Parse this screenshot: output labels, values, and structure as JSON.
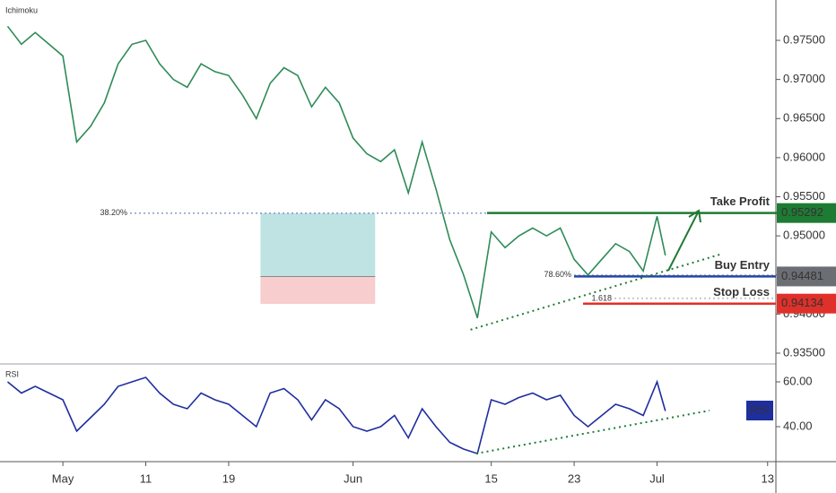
{
  "chart_data": [
    {
      "type": "line",
      "title": "Ichimoku",
      "x": [
        -4,
        -3,
        -2,
        -1,
        0,
        1,
        2,
        3,
        4,
        5,
        6,
        7,
        8,
        9,
        10,
        11,
        12,
        13,
        14,
        15,
        16,
        17,
        18,
        19,
        20,
        21,
        22,
        23,
        24,
        25,
        26,
        27,
        28,
        29,
        30,
        31,
        32,
        33,
        34,
        35,
        36,
        37,
        38,
        39,
        40,
        41,
        42,
        43,
        43.6
      ],
      "series": [
        {
          "color": "#2e8b57",
          "values": [
            0.9768,
            0.9745,
            0.976,
            0.9745,
            0.973,
            0.962,
            0.964,
            0.967,
            0.972,
            0.9745,
            0.975,
            0.972,
            0.97,
            0.969,
            0.972,
            0.971,
            0.9705,
            0.968,
            0.965,
            0.9695,
            0.9715,
            0.9705,
            0.9665,
            0.969,
            0.967,
            0.9625,
            0.9605,
            0.9595,
            0.961,
            0.9555,
            0.962,
            0.956,
            0.9495,
            0.945,
            0.9395,
            0.9505,
            0.9485,
            0.95,
            0.951,
            0.95,
            0.951,
            0.947,
            0.945,
            0.947,
            0.949,
            0.948,
            0.9455,
            0.9525,
            0.9475
          ]
        }
      ],
      "xlim": [
        -4.55,
        51.6
      ],
      "ylim": [
        0.93374,
        0.98016
      ],
      "yticks": [
        {
          "value": 0.935,
          "label": "0.93500"
        },
        {
          "value": 0.94,
          "label": "0.94000"
        },
        {
          "value": 0.945,
          "label": "0.94500"
        },
        {
          "value": 0.95,
          "label": "0.95000"
        },
        {
          "value": 0.955,
          "label": "0.95500"
        },
        {
          "value": 0.96,
          "label": "0.96000"
        },
        {
          "value": 0.965,
          "label": "0.96500"
        },
        {
          "value": 0.97,
          "label": "0.97000"
        },
        {
          "value": 0.975,
          "label": "0.97500"
        }
      ],
      "levels": [
        {
          "label": "Take Profit",
          "value": 0.95292,
          "color": "#1e7b34"
        },
        {
          "label": "Buy Entry",
          "value": 0.94481,
          "color": "#2046a8"
        },
        {
          "label": "Stop Loss",
          "value": 0.94134,
          "color": "#e0302a"
        }
      ],
      "fib_levels": [
        {
          "label": "38.20%",
          "value": 0.9529
        },
        {
          "label": "78.60%",
          "value": 0.945
        },
        {
          "label": "1.618",
          "value": 0.942
        }
      ],
      "position_box": {
        "x": [
          14.3,
          22.6
        ],
        "target": 0.9529,
        "entry": 0.9448,
        "stop": 0.9413
      },
      "trendline": {
        "x": [
          29.5,
          47.7
        ],
        "y": [
          0.938,
          0.9477
        ]
      }
    },
    {
      "type": "line",
      "title": "RSI",
      "badge": "RSI",
      "x": [
        -4,
        -3,
        -2,
        -1,
        0,
        1,
        2,
        3,
        4,
        5,
        6,
        7,
        8,
        9,
        10,
        11,
        12,
        13,
        14,
        15,
        16,
        17,
        18,
        19,
        20,
        21,
        22,
        23,
        24,
        25,
        26,
        27,
        28,
        29,
        30,
        31,
        32,
        33,
        34,
        35,
        36,
        37,
        38,
        39,
        40,
        41,
        42,
        43,
        43.6
      ],
      "series": [
        {
          "color": "#1f2e9e",
          "values": [
            60,
            55,
            58,
            55,
            52,
            38,
            44,
            50,
            58,
            60,
            62,
            55,
            50,
            48,
            55,
            52,
            50,
            45,
            40,
            55,
            57,
            52,
            43,
            52,
            48,
            40,
            38,
            40,
            45,
            35,
            48,
            40,
            33,
            30,
            28,
            52,
            50,
            53,
            55,
            52,
            54,
            45,
            40,
            45,
            50,
            48,
            45,
            60,
            47
          ]
        }
      ],
      "xlim": [
        -4.55,
        51.6
      ],
      "ylim": [
        24.4,
        67.6
      ],
      "yticks": [
        {
          "value": 40,
          "label": "40.00"
        },
        {
          "value": 60,
          "label": "60.00"
        }
      ],
      "xticks": [
        {
          "value": 0,
          "label": "May"
        },
        {
          "value": 6,
          "label": "11"
        },
        {
          "value": 12,
          "label": "19"
        },
        {
          "value": 21,
          "label": "Jun"
        },
        {
          "value": 31,
          "label": "15"
        },
        {
          "value": 37,
          "label": "23"
        },
        {
          "value": 43,
          "label": "Jul"
        },
        {
          "value": 51,
          "label": "13"
        }
      ],
      "trendline": {
        "x": [
          29.9,
          46.8
        ],
        "y": [
          28,
          47.2
        ]
      }
    }
  ]
}
